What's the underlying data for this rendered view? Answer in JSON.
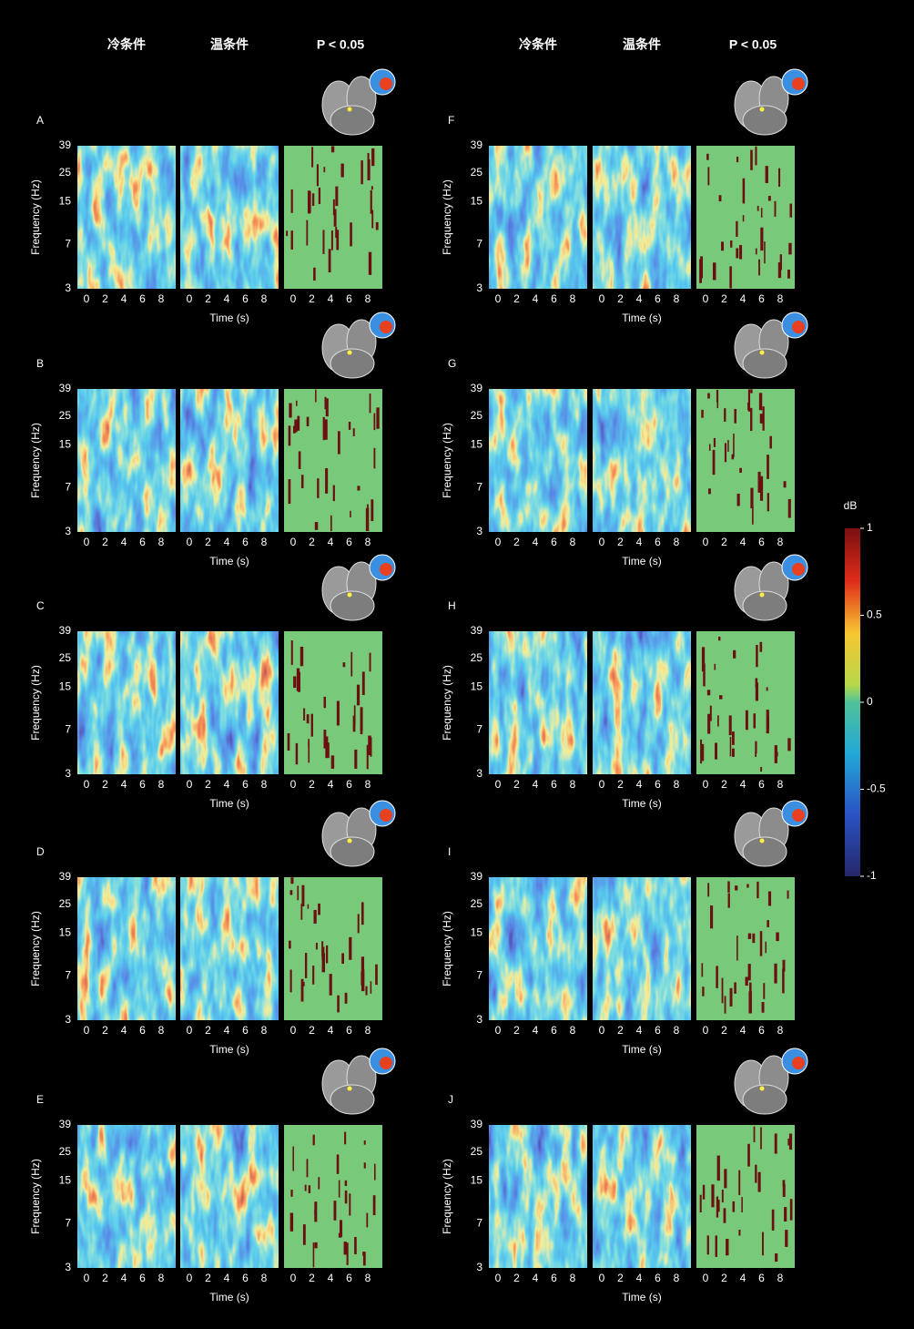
{
  "column_headers": [
    "冷条件",
    "温条件",
    "P < 0.05"
  ],
  "panels": [
    {
      "label": "A"
    },
    {
      "label": "B"
    },
    {
      "label": "C"
    },
    {
      "label": "D"
    },
    {
      "label": "E"
    },
    {
      "label": "F"
    },
    {
      "label": "G"
    },
    {
      "label": "H"
    },
    {
      "label": "I"
    },
    {
      "label": "J"
    }
  ],
  "y_axis": {
    "label": "Frequency (Hz)",
    "ticks": [
      39,
      25,
      15,
      7,
      3
    ]
  },
  "x_axis": {
    "label": "Time (s)",
    "ticks": [
      0,
      2,
      4,
      6,
      8
    ]
  },
  "colorbar": {
    "title": "dB",
    "ticks": [
      1,
      0.5,
      0,
      -0.5,
      -1
    ]
  }
}
